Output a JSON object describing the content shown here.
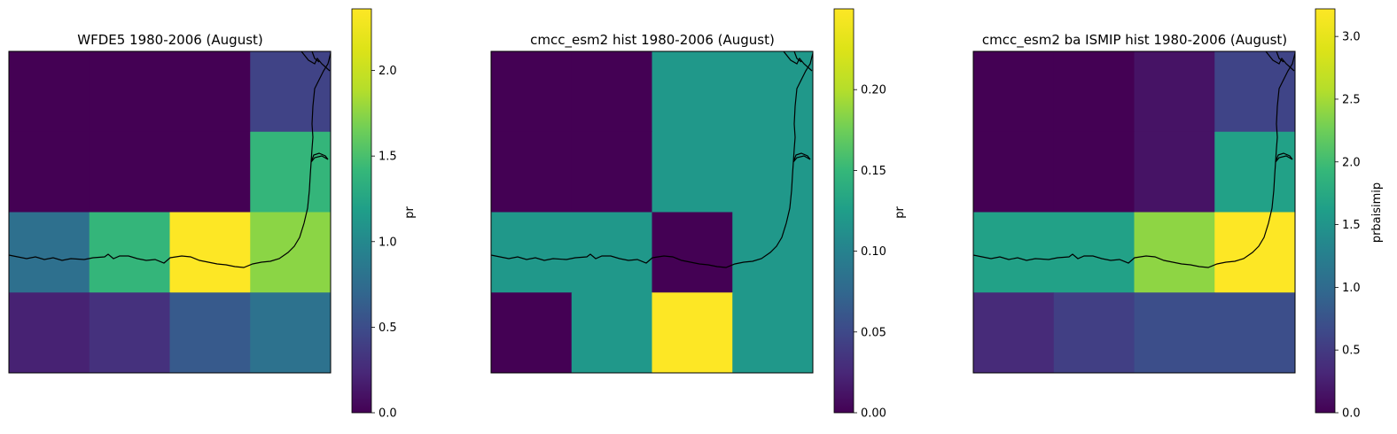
{
  "chart_data": [
    {
      "type": "heatmap",
      "title": "WFDE5 1980-2006 (August)",
      "colorbar_label": "pr",
      "colorbar_range": [
        0,
        2.36
      ],
      "colorbar_ticks": [
        0.0,
        0.5,
        1.0,
        1.5,
        2.0
      ],
      "colorbar_tick_labels": [
        "0.0",
        "0.5",
        "1.0",
        "1.5",
        "2.0"
      ],
      "rows": 4,
      "cols": 4,
      "values": [
        [
          0.0,
          0.0,
          0.0,
          0.43
        ],
        [
          0.0,
          0.0,
          0.0,
          1.4
        ],
        [
          0.78,
          1.4,
          2.36,
          1.75
        ],
        [
          0.2,
          0.3,
          0.6,
          0.8
        ]
      ]
    },
    {
      "type": "heatmap",
      "title": "cmcc_esm2 hist 1980-2006 (August)",
      "colorbar_label": "pr",
      "colorbar_range": [
        0,
        0.25
      ],
      "colorbar_ticks": [
        0.0,
        0.05,
        0.1,
        0.15,
        0.2
      ],
      "colorbar_tick_labels": [
        "0.00",
        "0.05",
        "0.10",
        "0.15",
        "0.20"
      ],
      "rows": 4,
      "cols": 4,
      "values": [
        [
          0.0,
          0.0,
          0.12,
          0.12
        ],
        [
          0.0,
          0.0,
          0.12,
          0.12
        ],
        [
          0.12,
          0.12,
          0.0,
          0.12
        ],
        [
          0.0,
          0.12,
          0.25,
          0.12
        ]
      ]
    },
    {
      "type": "heatmap",
      "title": "cmcc_esm2 ba ISMIP hist 1980-2006 (August)",
      "colorbar_label": "prbaisimip",
      "colorbar_range": [
        0,
        3.22
      ],
      "colorbar_ticks": [
        0.0,
        0.5,
        1.0,
        1.5,
        2.0,
        2.5,
        3.0
      ],
      "colorbar_tick_labels": [
        "0.0",
        "0.5",
        "1.0",
        "1.5",
        "2.0",
        "2.5",
        "3.0"
      ],
      "rows": 4,
      "cols": 4,
      "values": [
        [
          0.0,
          0.0,
          0.15,
          0.6
        ],
        [
          0.0,
          0.0,
          0.15,
          1.65
        ],
        [
          1.65,
          1.65,
          2.4,
          3.22
        ],
        [
          0.35,
          0.55,
          0.7,
          0.7
        ]
      ]
    }
  ]
}
